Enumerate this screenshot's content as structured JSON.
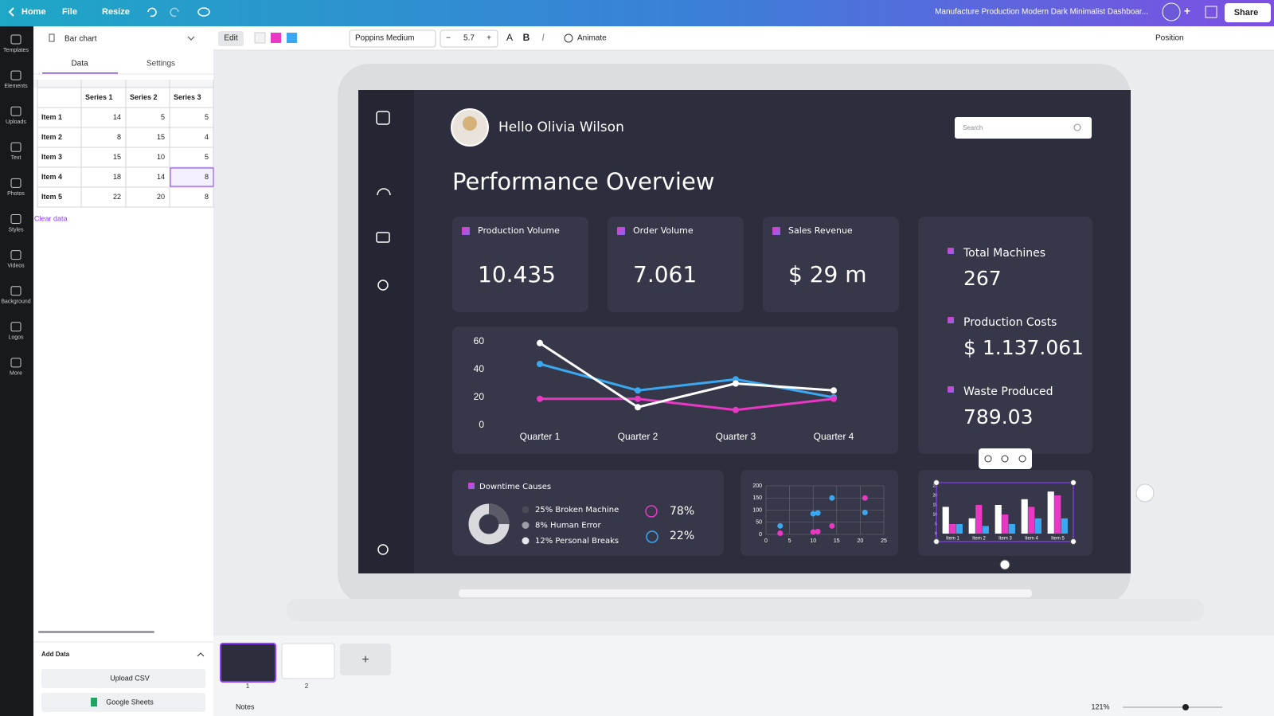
{
  "top_bar": {
    "home": "Home",
    "file": "File",
    "resize": "Resize",
    "document_title": "Manufacture Production Modern Dark Minimalist Dashboar...",
    "share": "Share"
  },
  "side_rail": {
    "items": [
      "Templates",
      "Elements",
      "Uploads",
      "Text",
      "Photos",
      "Styles",
      "Videos",
      "Background",
      "Logos",
      "More"
    ]
  },
  "data_panel": {
    "chart_type": "Bar chart",
    "tabs": [
      "Data",
      "Settings"
    ],
    "clear_data": "Clear data",
    "add_data": "Add Data",
    "upload_csv": "Upload CSV",
    "google_sheets": "Google Sheets"
  },
  "toolbar": {
    "edit": "Edit",
    "font": "Poppins Medium",
    "font_size": "5.7",
    "animate": "Animate",
    "position": "Position"
  },
  "dashboard": {
    "greeting": "Hello Olivia Wilson",
    "search_placeholder": "Search",
    "title": "Performance Overview",
    "kpis": [
      {
        "label": "Production Volume",
        "value": "10.435"
      },
      {
        "label": "Order Volume",
        "value": "7.061"
      },
      {
        "label": "Sales Revenue",
        "value": "$ 29 m"
      }
    ],
    "stats": [
      {
        "label": "Total Machines",
        "value": "267"
      },
      {
        "label": "Production Costs",
        "value": "$ 1.137.061"
      },
      {
        "label": "Waste Produced",
        "value": "789.03"
      }
    ],
    "downtime": {
      "title": "Downtime Causes",
      "causes": [
        "25% Broken Machine",
        "8% Human Error",
        "12% Personal Breaks"
      ],
      "shares": [
        "78%",
        "22%"
      ]
    }
  },
  "chart_data": [
    {
      "type": "line",
      "categories": [
        "Quarter 1",
        "Quarter 2",
        "Quarter 3",
        "Quarter 4"
      ],
      "series": [
        {
          "color": "#3aa8f0",
          "values": [
            44,
            25,
            33,
            20
          ]
        },
        {
          "color": "#e838c4",
          "values": [
            19,
            19,
            11,
            19
          ]
        },
        {
          "color": "#ffffff",
          "values": [
            59,
            13,
            30,
            25
          ]
        }
      ],
      "ylim": [
        0,
        60
      ],
      "yticks": [
        0,
        20,
        40,
        60
      ]
    },
    {
      "type": "scatter",
      "x": [
        3,
        10,
        11,
        14,
        21
      ],
      "series": [
        {
          "color": "#e838c4",
          "values": [
            5,
            10,
            12,
            35,
            150
          ]
        },
        {
          "color": "#3aa8f0",
          "values": [
            35,
            85,
            88,
            150,
            90
          ]
        }
      ],
      "xlim": [
        0,
        25
      ],
      "xticks": [
        0,
        5,
        10,
        15,
        20,
        25
      ],
      "ylim": [
        0,
        200
      ],
      "yticks": [
        0,
        50,
        100,
        150,
        200
      ],
      "grid": true
    },
    {
      "type": "bar",
      "categories": [
        "Item 1",
        "Item 2",
        "Item 3",
        "Item 4",
        "Item 5"
      ],
      "series": [
        {
          "name": "Series 1",
          "color": "#ffffff",
          "values": [
            14,
            8,
            15,
            18,
            22
          ]
        },
        {
          "name": "Series 2",
          "color": "#e838c4",
          "values": [
            5,
            15,
            10,
            14,
            20
          ]
        },
        {
          "name": "Series 3",
          "color": "#3aa8f0",
          "values": [
            5,
            4,
            5,
            8,
            8
          ]
        }
      ],
      "ylim": [
        0,
        25
      ],
      "yticks": [
        0,
        5,
        10,
        15,
        20,
        25
      ]
    }
  ],
  "bottom_bar": {
    "pages": [
      "1",
      "2"
    ],
    "notes": "Notes",
    "zoom": "121%"
  }
}
